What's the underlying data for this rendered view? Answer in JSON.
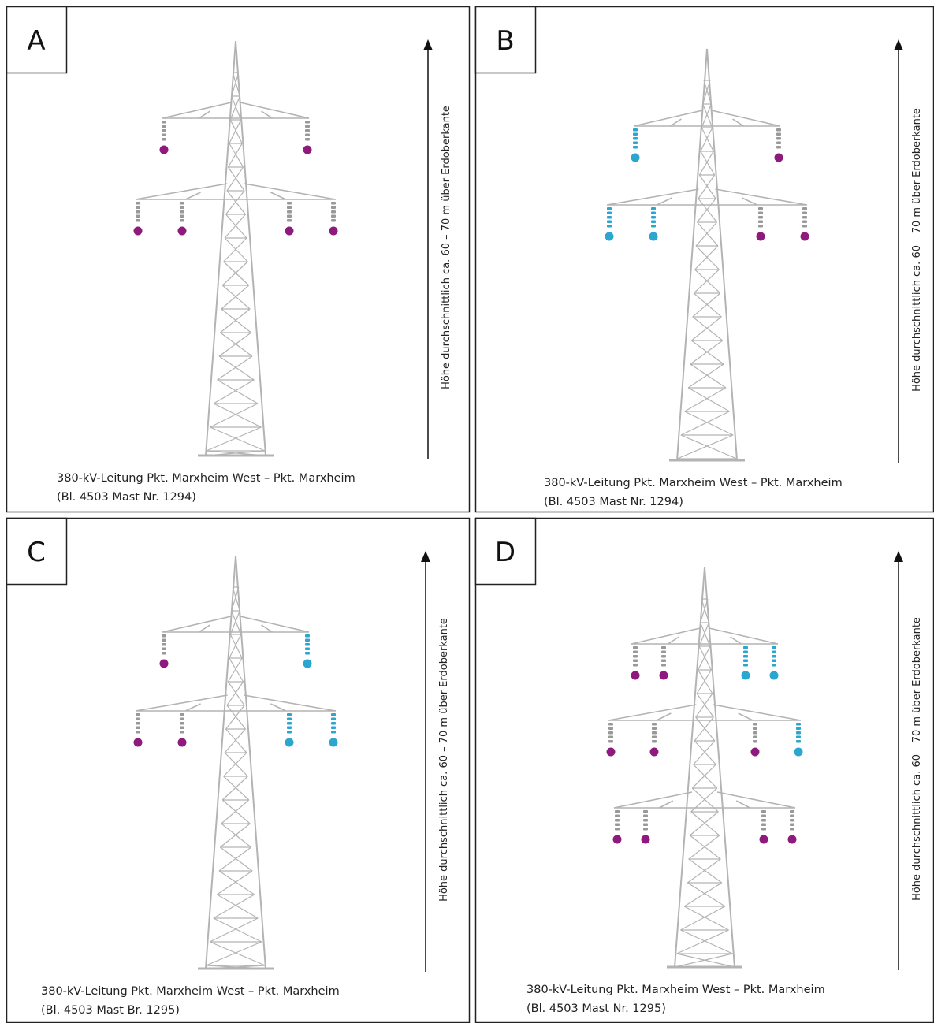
{
  "panels": [
    {
      "label": "A",
      "caption_line1": "380-kV-Leitung Pkt. Marxheim West – Pkt. Marxheim",
      "caption_line2": "(Bl. 4503 Mast Nr. 1294)",
      "height_label": "Höhe durchschnittlich ca. 60 – 70 m über Erdoberkante"
    },
    {
      "label": "B",
      "caption_line1": "380-kV-Leitung Pkt. Marxheim West – Pkt. Marxheim",
      "caption_line2": "(Bl. 4503 Mast Nr. 1294)",
      "height_label": "Höhe durchschnittlich ca. 60 – 70 m über Erdoberkante"
    },
    {
      "label": "C",
      "caption_line1": "380-kV-Leitung Pkt. Marxheim West – Pkt. Marxheim",
      "caption_line2": "(Bl. 4503 Mast Br. 1295)",
      "height_label": "Höhe durchschnittlich ca. 60 – 70 m über Erdoberkante"
    },
    {
      "label": "D",
      "caption_line1": "380-kV-Leitung Pkt. Marxheim West – Pkt. Marxheim",
      "caption_line2": "(Bl. 4503 Mast Nr. 1295)",
      "height_label": "Höhe durchschnittlich ca. 60 – 70 m über Erdoberkante"
    }
  ]
}
